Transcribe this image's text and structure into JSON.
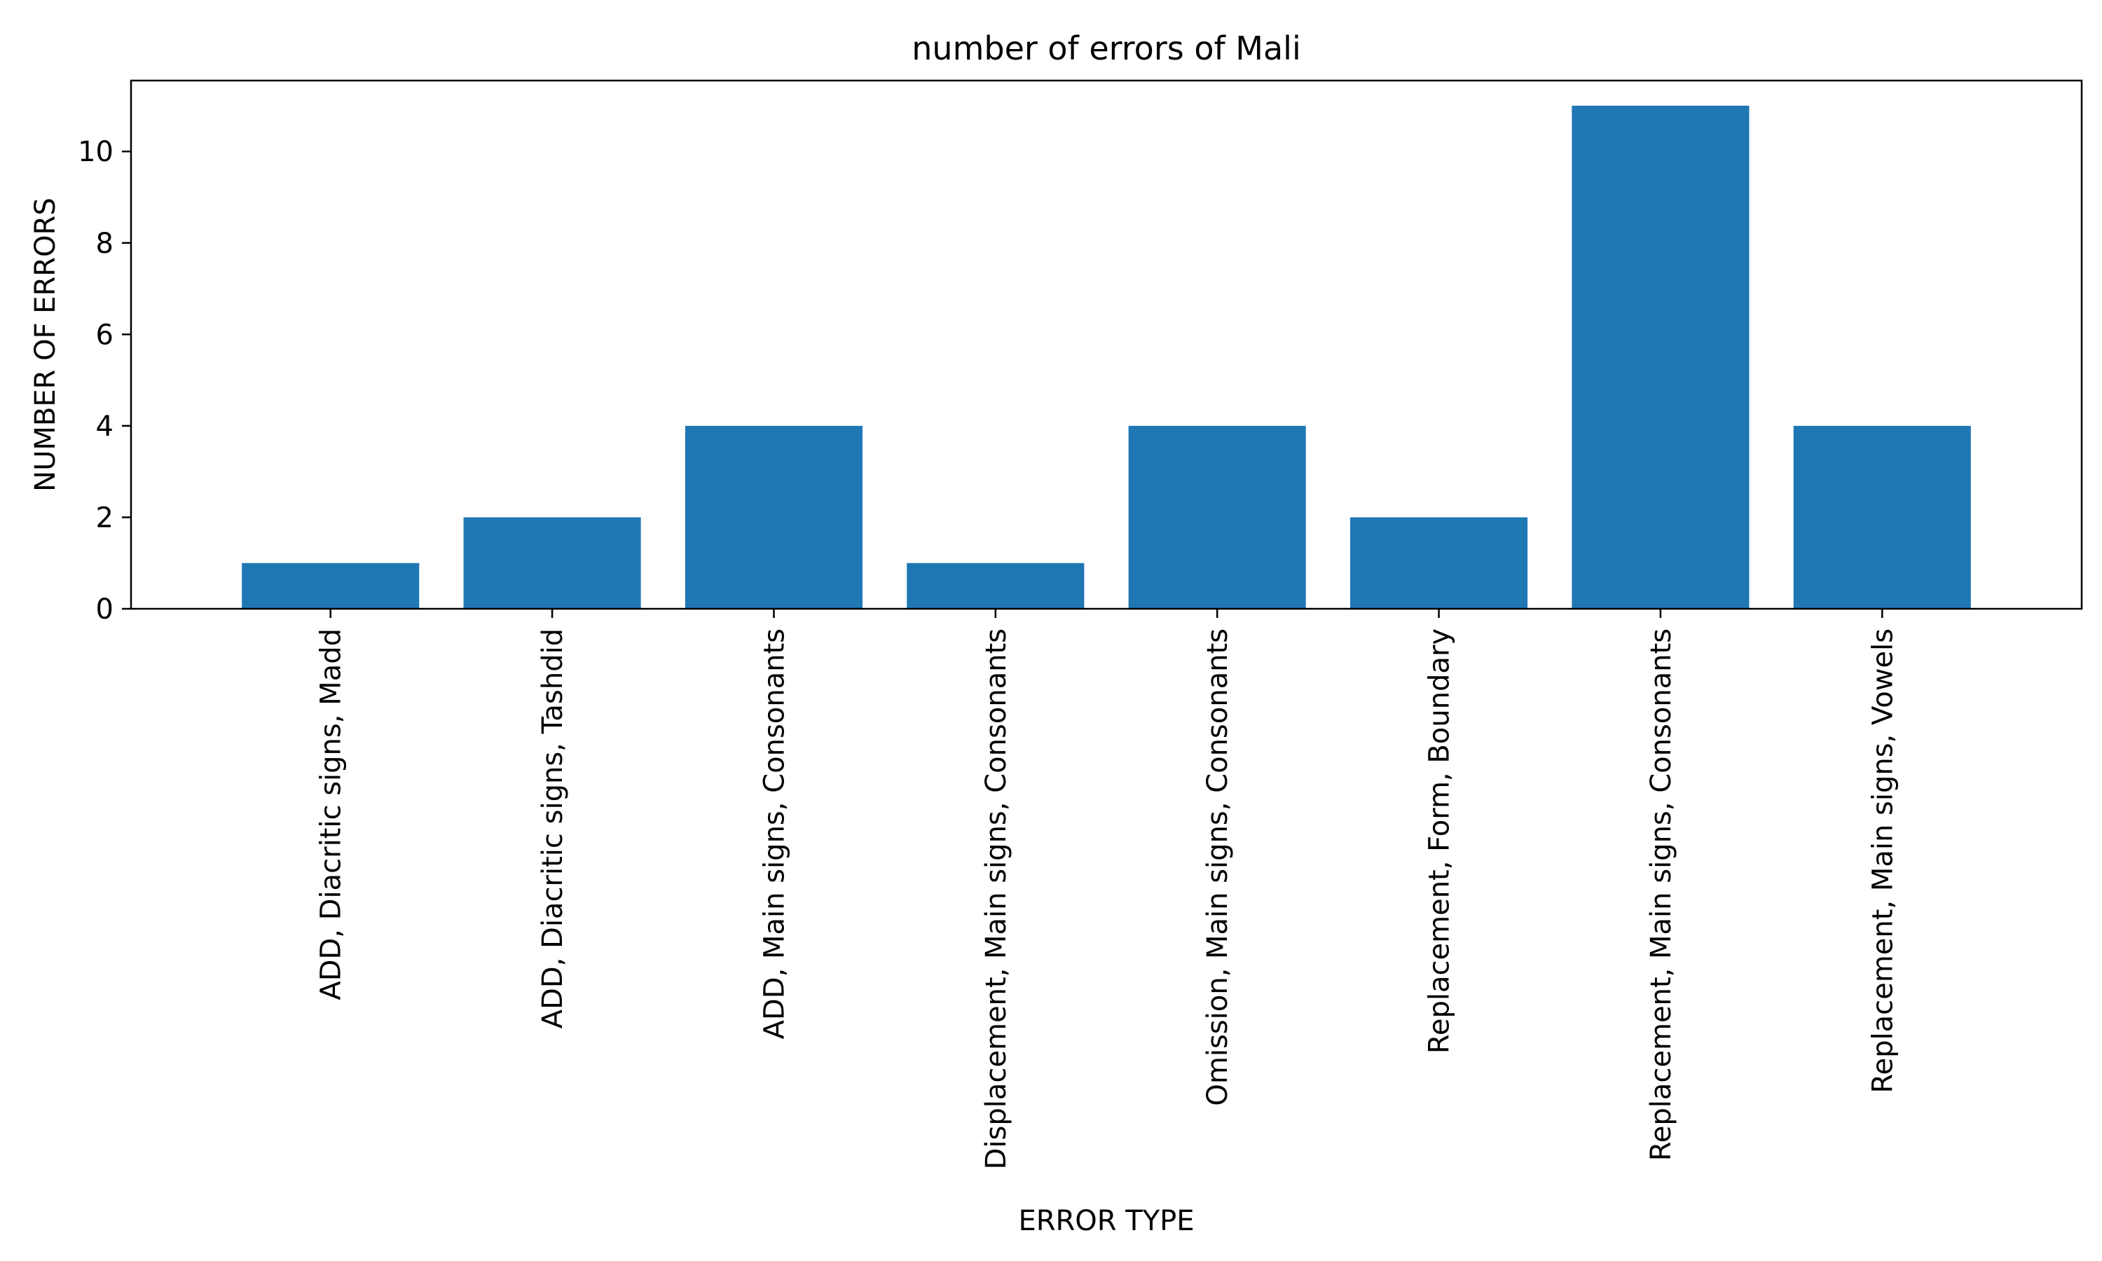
{
  "chart_data": {
    "type": "bar",
    "title": "number of errors of Mali",
    "xlabel": "ERROR TYPE",
    "ylabel": "NUMBER OF ERRORS",
    "categories": [
      "ADD, Diacritic signs, Madd",
      "ADD, Diacritic signs, Tashdid",
      "ADD, Main signs, Consonants",
      "Displacement, Main signs, Consonants",
      "Omission, Main signs, Consonants",
      "Replacement, Form, Boundary",
      "Replacement, Main signs, Consonants",
      "Replacement, Main signs, Vowels"
    ],
    "values": [
      1,
      2,
      4,
      1,
      4,
      2,
      11,
      4
    ],
    "ylim": [
      0,
      11.55
    ],
    "yticks": [
      0,
      2,
      4,
      6,
      8,
      10
    ],
    "grid": false,
    "legend": "none",
    "bar_color": "#1f77b4"
  }
}
